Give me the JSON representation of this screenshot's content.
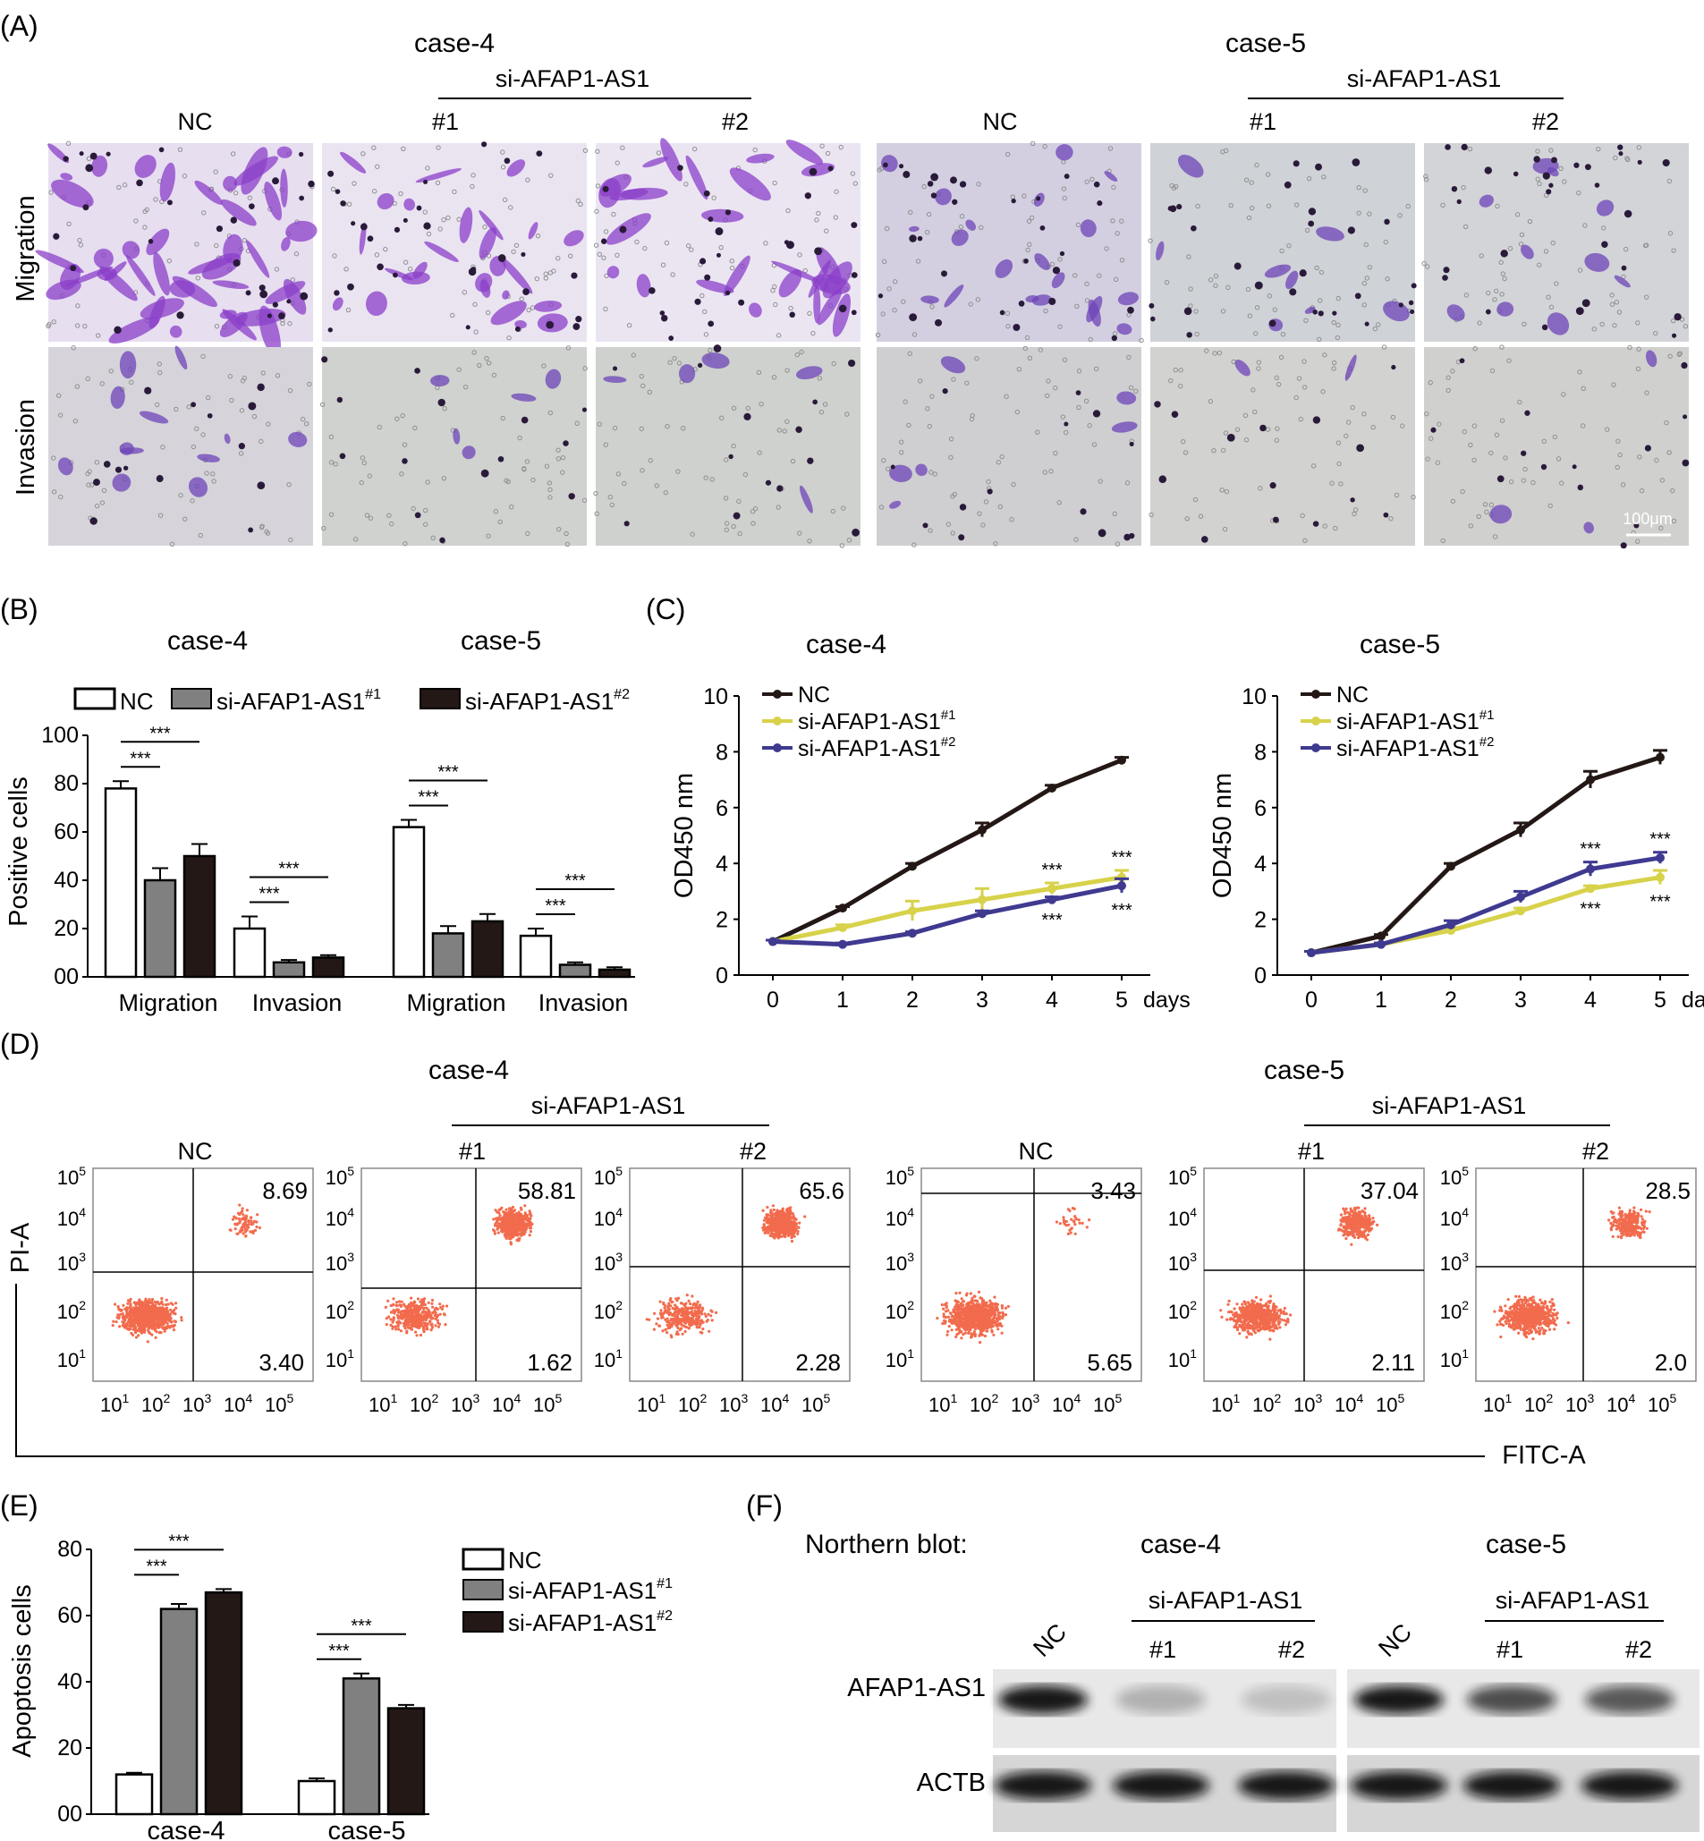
{
  "panel_a": {
    "label": "(A)",
    "groups": [
      {
        "case": "case-4",
        "si_label": "si-AFAP1-AS1",
        "cols": [
          "NC",
          "#1",
          "#2"
        ]
      },
      {
        "case": "case-5",
        "si_label": "si-AFAP1-AS1",
        "cols": [
          "NC",
          "#1",
          "#2"
        ]
      }
    ],
    "rows": [
      "Migration",
      "Invasion"
    ],
    "scale_bar": "100μm",
    "stain_color_dark": "#7a3cc4",
    "stain_color_light": "#cbbcd6"
  },
  "panel_b": {
    "label": "(B)",
    "legend": [
      "NC",
      "si-AFAP1-AS1",
      "si-AFAP1-AS1"
    ],
    "legend_sup": [
      "",
      "#1",
      "#2"
    ],
    "ylabel": "Positive cells",
    "yticks": [
      "00",
      "20",
      "40",
      "60",
      "80",
      "100"
    ],
    "sig": "***"
  },
  "panel_c": {
    "label": "(C)",
    "ylabel": "OD450 nm",
    "xunit": "days",
    "legend": [
      "NC",
      "si-AFAP1-AS1",
      "si-AFAP1-AS1"
    ],
    "legend_sup": [
      "",
      "#1",
      "#2"
    ],
    "colors": [
      "#231815",
      "#d7d24a",
      "#3f3a90"
    ],
    "sig": "***"
  },
  "panel_d": {
    "label": "(D)",
    "ylabel": "PI-A",
    "xlabel": "FITC-A",
    "groups": [
      {
        "case": "case-4",
        "si_label": "si-AFAP1-AS1",
        "cols": [
          "NC",
          "#1",
          "#2"
        ]
      },
      {
        "case": "case-5",
        "si_label": "si-AFAP1-AS1",
        "cols": [
          "NC",
          "#1",
          "#2"
        ]
      }
    ],
    "plots": [
      {
        "ur": "8.69",
        "lr": "3.40"
      },
      {
        "ur": "58.81",
        "lr": "1.62"
      },
      {
        "ur": "65.6",
        "lr": "2.28"
      },
      {
        "ur": "3.43",
        "lr": "5.65"
      },
      {
        "ur": "37.04",
        "lr": "2.11"
      },
      {
        "ur": "28.5",
        "lr": "2.0"
      }
    ],
    "dot_color": "#f26b4d"
  },
  "panel_e": {
    "label": "(E)",
    "ylabel": "Apoptosis cells",
    "yticks": [
      "00",
      "20",
      "40",
      "60",
      "80"
    ],
    "legend": [
      "NC",
      "si-AFAP1-AS1",
      "si-AFAP1-AS1"
    ],
    "legend_sup": [
      "",
      "#1",
      "#2"
    ],
    "sig": "***"
  },
  "panel_f": {
    "label": "(F)",
    "title": "Northern blot:",
    "groups": [
      {
        "case": "case-4",
        "si_label": "si-AFAP1-AS1",
        "nc": "NC",
        "cols": [
          "#1",
          "#2"
        ]
      },
      {
        "case": "case-5",
        "si_label": "si-AFAP1-AS1",
        "nc": "NC",
        "cols": [
          "#1",
          "#2"
        ]
      }
    ],
    "rows": [
      "AFAP1-AS1",
      "ACTB"
    ],
    "band_intensity": [
      [
        0.95,
        0.25,
        0.18
      ],
      [
        0.95,
        0.7,
        0.65
      ]
    ]
  },
  "chart_data": [
    {
      "type": "bar",
      "panel": "B",
      "subcharts": [
        {
          "title": "case-4",
          "categories": [
            "Migration",
            "Invasion"
          ],
          "series": [
            {
              "name": "NC",
              "values": [
                78,
                20
              ],
              "err": [
                3,
                5
              ]
            },
            {
              "name": "si-AFAP1-AS1#1",
              "values": [
                40,
                6
              ],
              "err": [
                5,
                1
              ]
            },
            {
              "name": "si-AFAP1-AS1#2",
              "values": [
                50,
                8
              ],
              "err": [
                5,
                1
              ]
            }
          ]
        },
        {
          "title": "case-5",
          "categories": [
            "Migration",
            "Invasion"
          ],
          "series": [
            {
              "name": "NC",
              "values": [
                62,
                17
              ],
              "err": [
                3,
                3
              ]
            },
            {
              "name": "si-AFAP1-AS1#1",
              "values": [
                18,
                5
              ],
              "err": [
                3,
                1
              ]
            },
            {
              "name": "si-AFAP1-AS1#2",
              "values": [
                23,
                3
              ],
              "err": [
                3,
                1
              ]
            }
          ]
        }
      ],
      "ylim": [
        0,
        100
      ]
    },
    {
      "type": "line",
      "panel": "C",
      "x": [
        0,
        1,
        2,
        3,
        4,
        5
      ],
      "ylim": [
        0,
        10
      ],
      "subcharts": [
        {
          "title": "case-4",
          "series": [
            {
              "name": "NC",
              "values": [
                1.2,
                2.4,
                3.9,
                5.2,
                6.7,
                7.7
              ],
              "err": [
                0.05,
                0.05,
                0.1,
                0.25,
                0.1,
                0.1
              ]
            },
            {
              "name": "si-AFAP1-AS1#1",
              "values": [
                1.2,
                1.7,
                2.3,
                2.7,
                3.1,
                3.5
              ],
              "err": [
                0.05,
                0.1,
                0.35,
                0.4,
                0.2,
                0.25
              ]
            },
            {
              "name": "si-AFAP1-AS1#2",
              "values": [
                1.2,
                1.1,
                1.5,
                2.2,
                2.7,
                3.2
              ],
              "err": [
                0.05,
                0.05,
                0.05,
                0.1,
                0.1,
                0.25
              ]
            }
          ]
        },
        {
          "title": "case-5",
          "series": [
            {
              "name": "NC",
              "values": [
                0.8,
                1.4,
                3.9,
                5.2,
                7.0,
                7.8
              ],
              "err": [
                0.05,
                0.05,
                0.1,
                0.25,
                0.3,
                0.25
              ]
            },
            {
              "name": "si-AFAP1-AS1#1",
              "values": [
                0.8,
                1.1,
                1.6,
                2.3,
                3.1,
                3.5
              ],
              "err": [
                0.05,
                0.05,
                0.1,
                0.1,
                0.1,
                0.25
              ]
            },
            {
              "name": "si-AFAP1-AS1#2",
              "values": [
                0.8,
                1.1,
                1.8,
                2.8,
                3.8,
                4.2
              ],
              "err": [
                0.05,
                0.05,
                0.15,
                0.2,
                0.25,
                0.2
              ]
            }
          ]
        }
      ]
    },
    {
      "type": "bar",
      "panel": "E",
      "categories": [
        "case-4",
        "case-5"
      ],
      "series": [
        {
          "name": "NC",
          "values": [
            12,
            10
          ],
          "err": [
            0.5,
            0.8
          ]
        },
        {
          "name": "si-AFAP1-AS1#1",
          "values": [
            62,
            41
          ],
          "err": [
            1.5,
            1.5
          ]
        },
        {
          "name": "si-AFAP1-AS1#2",
          "values": [
            67,
            32
          ],
          "err": [
            1.0,
            1.0
          ]
        }
      ],
      "ylim": [
        0,
        80
      ]
    }
  ]
}
